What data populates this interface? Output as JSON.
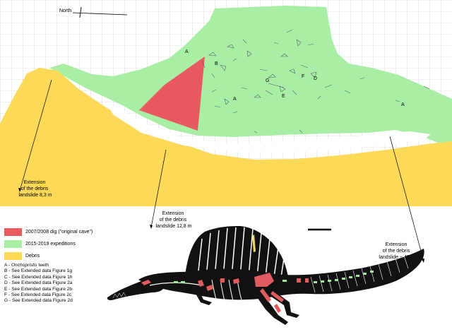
{
  "compass": {
    "label": "North"
  },
  "zone_letters": [
    {
      "name": "zone-letter-a-left",
      "text": "A"
    },
    {
      "name": "zone-letter-b",
      "text": "B"
    },
    {
      "name": "zone-letter-g",
      "text": "G"
    },
    {
      "name": "zone-letter-a-center",
      "text": "A"
    },
    {
      "name": "zone-letter-f",
      "text": "F"
    },
    {
      "name": "zone-letter-d",
      "text": "D"
    },
    {
      "name": "zone-letter-a-right",
      "text": "A"
    },
    {
      "name": "zone-letter-e",
      "text": "E"
    }
  ],
  "extensions": [
    {
      "name": "extension-left",
      "lines": [
        "Extension",
        "of the debris",
        "landslide 8,3 m"
      ]
    },
    {
      "name": "extension-middle",
      "lines": [
        "Extension",
        "of the debris",
        "landslide 12,8 m"
      ]
    },
    {
      "name": "extension-right",
      "lines": [
        "Extension",
        "of the debris",
        "landslide ~ 45 m"
      ]
    }
  ],
  "legend": [
    {
      "name": "legend-original-cave",
      "color": "#e85a5f",
      "label": "2007/2008 dig (\"original cave\")"
    },
    {
      "name": "legend-expeditions",
      "color": "#a8eea5",
      "label": "2015-2019 expeditions"
    },
    {
      "name": "legend-debris",
      "color": "#fcd956",
      "label": "Debris"
    }
  ],
  "key": {
    "a_letter": "A - ",
    "a_italic": "Onchopristis",
    "a_rest": " teeth",
    "lines": [
      "B - See Extended data Figure 1g",
      "C - See Extended data Figure 1h",
      "D - See Extended data Figure 2a",
      "E - See Extended data Figure 2b",
      "F - See Extended data Figure 2c",
      "G - See Extended data Figure 2d"
    ]
  }
}
